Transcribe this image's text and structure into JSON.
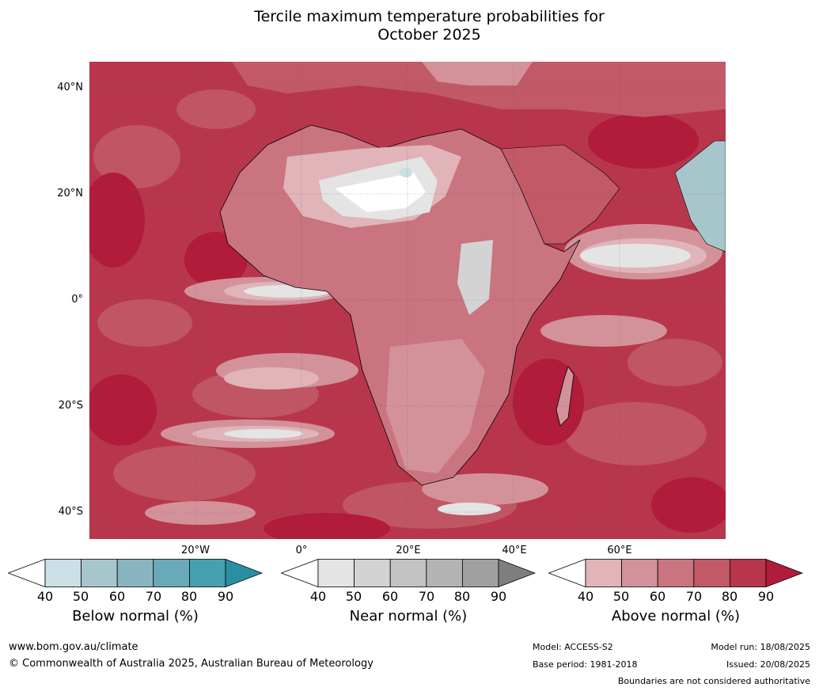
{
  "title": {
    "line1": "Tercile maximum temperature probabilities for",
    "line2": "October 2025"
  },
  "lat_labels": [
    "40°N",
    "20°N",
    "0°",
    "20°S",
    "40°S"
  ],
  "lon_labels": [
    "20°W",
    "0°",
    "20°E",
    "40°E",
    "60°E"
  ],
  "colorbars": [
    {
      "label": "Below normal (%)",
      "ticks": [
        "40",
        "50",
        "60",
        "70",
        "80",
        "90"
      ],
      "colors": [
        "#ffffff",
        "#c9e0e6",
        "#a7c6cc",
        "#88b5c0",
        "#6aaab8",
        "#46a0b0",
        "#2b8fa3"
      ]
    },
    {
      "label": "Near normal (%)",
      "ticks": [
        "40",
        "50",
        "60",
        "70",
        "80",
        "90"
      ],
      "colors": [
        "#ffffff",
        "#e4e4e4",
        "#d3d3d3",
        "#c3c3c3",
        "#b3b3b3",
        "#a0a0a0",
        "#7e7e7e"
      ]
    },
    {
      "label": "Above normal (%)",
      "ticks": [
        "40",
        "50",
        "60",
        "70",
        "80",
        "90"
      ],
      "colors": [
        "#ffffff",
        "#e0b4b9",
        "#d3929a",
        "#c9747f",
        "#c15a66",
        "#b8364b",
        "#b01c3a"
      ]
    }
  ],
  "footer": {
    "url": "www.bom.gov.au/climate",
    "copyright": "© Commonwealth of Australia 2025, Australian Bureau of Meteorology",
    "model": "Model: ACCESS-S2",
    "base_period": "Base period: 1981-2018",
    "model_run": "Model run: 18/08/2025",
    "issued": "Issued: 20/08/2025",
    "disclaimer": "Boundaries are not considered authoritative"
  }
}
